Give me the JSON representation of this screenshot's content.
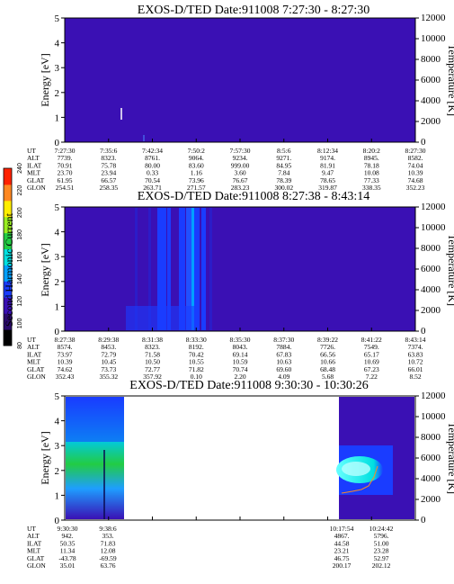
{
  "colors": {
    "background_fill": "#3a10b4",
    "panel_bg": "#ffffff",
    "cyan": "#00e0e0",
    "green": "#22cc44",
    "blue": "#1a3cff",
    "orange": "#ff8822"
  },
  "colorbar": {
    "label": "Second Harmonic Current",
    "ticks": [
      "80",
      "100",
      "120",
      "140",
      "160",
      "180",
      "200",
      "220",
      "240"
    ],
    "colors": [
      "#000000",
      "#2a0a6a",
      "#3a10b4",
      "#1a3cff",
      "#00a0ff",
      "#00e0e0",
      "#22cc44",
      "#99ee22",
      "#ffee00",
      "#ff8822",
      "#ff2200"
    ]
  },
  "chart_data": [
    {
      "type": "heatmap",
      "title": "EXOS-D/TED   Date:911008  7:27:30 - 8:27:30",
      "ylabel": "Energy [eV]",
      "y2label": "Temperature [K]",
      "ylim": [
        0,
        5
      ],
      "y2lim": [
        0,
        12000
      ],
      "yticks": [
        "0",
        "1",
        "2",
        "3",
        "4",
        "5"
      ],
      "y2ticks": [
        "0",
        "2000",
        "4000",
        "6000",
        "8000",
        "10000",
        "12000"
      ],
      "ephemeris": {
        "labels": [
          "UT",
          "ALT",
          "ILAT",
          "MLT",
          "GLAT",
          "GLON"
        ],
        "columns": [
          [
            "7:27:30",
            "7739.",
            "70.91",
            "23.70",
            "61.95",
            "254.51"
          ],
          [
            "7:35:6",
            "8323.",
            "75.78",
            "23.94",
            "66.57",
            "258.35"
          ],
          [
            "7:42:34",
            "8761.",
            "80.00",
            "0.33",
            "70.54",
            "263.71"
          ],
          [
            "7:50:2",
            "9064.",
            "83.60",
            "1.16",
            "73.96",
            "271.57"
          ],
          [
            "7:57:30",
            "9234.",
            "999.00",
            "3.60",
            "76.67",
            "283.23"
          ],
          [
            "8:5:6",
            "9271.",
            "84.95",
            "7.84",
            "78.39",
            "300.02"
          ],
          [
            "8:12:34",
            "9174.",
            "81.91",
            "9.47",
            "78.65",
            "319.87"
          ],
          [
            "8:20:2",
            "8945.",
            "78.18",
            "10.08",
            "77.33",
            "338.35"
          ],
          [
            "8:27:30",
            "8582.",
            "74.04",
            "10.39",
            "74.68",
            "352.23"
          ]
        ]
      }
    },
    {
      "type": "heatmap",
      "title": "EXOS-D/TED   Date:911008   8:27:38 - 8:43:14",
      "ylabel": "Energy [eV]",
      "y2label": "Temperature [K]",
      "ylim": [
        0,
        5
      ],
      "y2lim": [
        0,
        12000
      ],
      "yticks": [
        "0",
        "1",
        "2",
        "3",
        "4",
        "5"
      ],
      "y2ticks": [
        "0",
        "2000",
        "4000",
        "6000",
        "8000",
        "10000",
        "12000"
      ],
      "ephemeris": {
        "labels": [
          "UT",
          "ALT",
          "ILAT",
          "MLT",
          "GLAT",
          "GLON"
        ],
        "columns": [
          [
            "8:27:38",
            "8574.",
            "73.97",
            "10.39",
            "74.62",
            "352.43"
          ],
          [
            "8:29:38",
            "8453.",
            "72.79",
            "10.45",
            "73.73",
            "355.32"
          ],
          [
            "8:31:38",
            "8323.",
            "71.58",
            "10.50",
            "72.77",
            "357.92"
          ],
          [
            "8:33:30",
            "8192.",
            "70.42",
            "10.55",
            "71.82",
            "0.10"
          ],
          [
            "8:35:30",
            "8043.",
            "69.14",
            "10.59",
            "70.74",
            "2.20"
          ],
          [
            "8:37:30",
            "7884.",
            "67.83",
            "10.63",
            "69.60",
            "4.09"
          ],
          [
            "8:39:22",
            "7726.",
            "66.56",
            "10.66",
            "68.48",
            "5.68"
          ],
          [
            "8:41:22",
            "7549.",
            "65.17",
            "10.69",
            "67.23",
            "7.22"
          ],
          [
            "8:43:14",
            "7374.",
            "63.83",
            "10.72",
            "66.01",
            "8.52"
          ]
        ]
      }
    },
    {
      "type": "heatmap",
      "title": "EXOS-D/TED   Date:911008   9:30:30 - 10:30:26",
      "ylabel": "Energy [eV]",
      "y2label": "Temperature [K]",
      "ylim": [
        0,
        5
      ],
      "y2lim": [
        0,
        12000
      ],
      "yticks": [
        "0",
        "1",
        "2",
        "3",
        "4",
        "5"
      ],
      "y2ticks": [
        "0",
        "2000",
        "4000",
        "6000",
        "8000",
        "10000",
        "12000"
      ],
      "ephemeris": {
        "labels": [
          "UT",
          "ALT",
          "ILAT",
          "MLT",
          "GLAT",
          "GLON"
        ],
        "columns_left": [
          [
            "9:30:30",
            "942.",
            "50.35",
            "11.34",
            "-43.78",
            "35.01"
          ],
          [
            "9:38:6",
            "353.",
            "71.83",
            "12.08",
            "-69.59",
            "63.76"
          ]
        ],
        "columns_right": [
          [
            "10:17:54",
            "4867.",
            "44.58",
            "23.21",
            "46.75",
            "200.17"
          ],
          [
            "10:24:42",
            "5796.",
            "51.00",
            "23.28",
            "52.97",
            "202.12"
          ]
        ]
      }
    }
  ]
}
